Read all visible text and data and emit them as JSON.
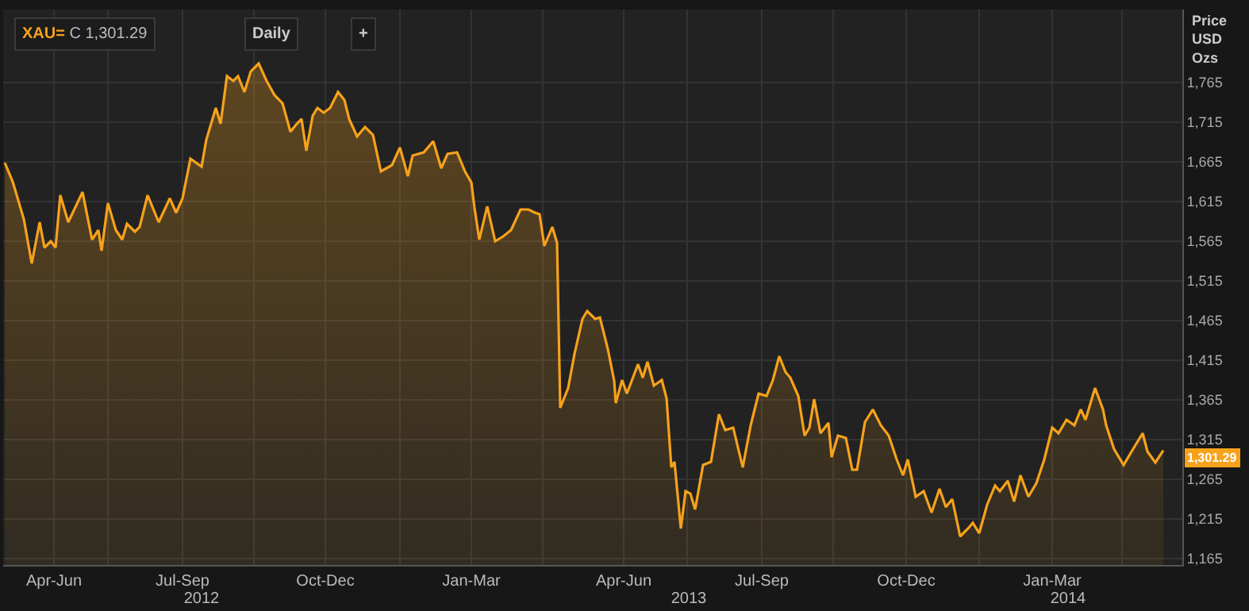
{
  "chart_data": {
    "type": "area",
    "title": "XAU=",
    "subtitle": "C 1,301.29",
    "ylabel": "Price\nUSD\nOzs",
    "x": [
      "2012-04-27",
      "2012-05-02",
      "2012-05-09",
      "2012-05-14",
      "2012-05-19",
      "2012-05-22",
      "2012-05-26",
      "2012-05-29",
      "2012-06-01",
      "2012-06-06",
      "2012-06-15",
      "2012-06-21",
      "2012-06-25",
      "2012-06-27",
      "2012-07-01",
      "2012-07-06",
      "2012-07-10",
      "2012-07-13",
      "2012-07-18",
      "2012-07-21",
      "2012-07-26",
      "2012-08-02",
      "2012-08-09",
      "2012-08-13",
      "2012-08-17",
      "2012-08-22",
      "2012-08-29",
      "2012-09-01",
      "2012-09-07",
      "2012-09-10",
      "2012-09-14",
      "2012-09-18",
      "2012-09-21",
      "2012-09-25",
      "2012-09-29",
      "2012-10-04",
      "2012-10-09",
      "2012-10-14",
      "2012-10-19",
      "2012-10-24",
      "2012-10-28",
      "2012-10-31",
      "2012-11-03",
      "2012-11-07",
      "2012-11-10",
      "2012-11-14",
      "2012-11-18",
      "2012-11-23",
      "2012-11-27",
      "2012-11-30",
      "2012-12-05",
      "2012-12-10",
      "2012-12-15",
      "2012-12-20",
      "2012-12-27",
      "2013-01-01",
      "2013-01-06",
      "2013-01-09",
      "2013-01-16",
      "2013-01-22",
      "2013-01-27",
      "2013-01-31",
      "2013-02-06",
      "2013-02-11",
      "2013-02-15",
      "2013-02-17",
      "2013-02-20",
      "2013-02-25",
      "2013-03-02",
      "2013-03-07",
      "2013-03-12",
      "2013-03-18",
      "2013-03-23",
      "2013-03-27",
      "2013-03-30",
      "2013-04-02",
      "2013-04-07",
      "2013-04-10",
      "2013-04-12",
      "2013-04-17",
      "2013-04-21",
      "2013-04-26",
      "2013-04-29",
      "2013-05-04",
      "2013-05-07",
      "2013-05-12",
      "2013-05-16",
      "2013-05-17",
      "2013-05-21",
      "2013-05-24",
      "2013-05-31",
      "2013-06-03",
      "2013-06-06",
      "2013-06-10",
      "2013-06-15",
      "2013-06-18",
      "2013-06-21",
      "2013-06-23",
      "2013-06-27",
      "2013-06-30",
      "2013-07-03",
      "2013-07-06",
      "2013-07-11",
      "2013-07-16",
      "2013-07-21",
      "2013-07-25",
      "2013-07-30",
      "2013-08-05",
      "2013-08-10",
      "2013-08-15",
      "2013-08-20",
      "2013-08-24",
      "2013-08-28",
      "2013-09-01",
      "2013-09-04",
      "2013-09-09",
      "2013-09-13",
      "2013-09-16",
      "2013-09-19",
      "2013-09-23",
      "2013-09-28",
      "2013-09-30",
      "2013-10-04",
      "2013-10-09",
      "2013-10-13",
      "2013-10-16",
      "2013-10-21",
      "2013-10-26",
      "2013-10-31",
      "2013-11-05",
      "2013-11-10",
      "2013-11-14",
      "2013-11-17",
      "2013-11-22",
      "2013-11-27",
      "2013-12-02",
      "2013-12-07",
      "2013-12-11",
      "2013-12-15",
      "2013-12-20",
      "2013-12-25",
      "2013-12-28",
      "2014-01-01",
      "2014-01-06",
      "2014-01-11",
      "2014-01-14",
      "2014-01-19",
      "2014-01-23",
      "2014-01-27",
      "2014-02-01",
      "2014-02-06",
      "2014-02-11",
      "2014-02-16",
      "2014-02-20",
      "2014-02-25",
      "2014-03-02",
      "2014-03-06",
      "2014-03-09",
      "2014-03-15",
      "2014-03-20",
      "2014-03-22",
      "2014-03-27",
      "2014-04-02",
      "2014-04-07",
      "2014-04-14",
      "2014-04-17",
      "2014-04-22",
      "2014-04-27"
    ],
    "series": [
      {
        "color": "#f7a21b",
        "values": [
          1664,
          1640,
          1593,
          1537,
          1589,
          1557,
          1565,
          1557,
          1623,
          1589,
          1627,
          1567,
          1579,
          1553,
          1613,
          1579,
          1567,
          1587,
          1577,
          1583,
          1623,
          1589,
          1619,
          1601,
          1619,
          1669,
          1659,
          1693,
          1733,
          1713,
          1773,
          1767,
          1773,
          1753,
          1779,
          1789,
          1767,
          1749,
          1739,
          1703,
          1713,
          1719,
          1679,
          1723,
          1733,
          1727,
          1733,
          1753,
          1743,
          1719,
          1697,
          1709,
          1699,
          1653,
          1661,
          1683,
          1647,
          1673,
          1677,
          1691,
          1657,
          1675,
          1677,
          1653,
          1639,
          1607,
          1567,
          1609,
          1565,
          1571,
          1579,
          1605,
          1605,
          1601,
          1599,
          1559,
          1583,
          1563,
          1355,
          1380,
          1423,
          1467,
          1477,
          1467,
          1469,
          1429,
          1389,
          1361,
          1390,
          1373,
          1410,
          1393,
          1413,
          1383,
          1390,
          1367,
          1280,
          1287,
          1203,
          1250,
          1247,
          1227,
          1283,
          1287,
          1347,
          1327,
          1330,
          1280,
          1333,
          1373,
          1370,
          1390,
          1420,
          1400,
          1393,
          1370,
          1320,
          1330,
          1366,
          1323,
          1336,
          1293,
          1320,
          1317,
          1277,
          1277,
          1337,
          1353,
          1333,
          1320,
          1290,
          1270,
          1290,
          1243,
          1250,
          1223,
          1253,
          1230,
          1240,
          1193,
          1203,
          1210,
          1197,
          1233,
          1257,
          1250,
          1263,
          1237,
          1270,
          1243,
          1260,
          1290,
          1330,
          1323,
          1340,
          1333,
          1353,
          1340,
          1380,
          1353,
          1333,
          1303,
          1283,
          1300,
          1323,
          1300,
          1286,
          1301.29
        ]
      }
    ],
    "xlim": [
      "2012-04-26",
      "2014-05-09"
    ],
    "xticks": [
      {
        "value": "2012-05-28",
        "label": "Apr-Jun"
      },
      {
        "value": "2012-07-01",
        "label": null
      },
      {
        "value": "2012-08-17",
        "label": "Jul-Sep"
      },
      {
        "value": "2012-10-01",
        "label": null
      },
      {
        "value": "2012-11-15",
        "label": "Oct-Dec"
      },
      {
        "value": "2013-01-01",
        "label": null
      },
      {
        "value": "2013-02-15",
        "label": "Jan-Mar"
      },
      {
        "value": "2013-04-01",
        "label": null
      },
      {
        "value": "2013-05-22",
        "label": "Apr-Jun"
      },
      {
        "value": "2013-07-01",
        "label": null
      },
      {
        "value": "2013-08-17",
        "label": "Jul-Sep"
      },
      {
        "value": "2013-10-01",
        "label": null
      },
      {
        "value": "2013-11-16",
        "label": "Oct-Dec"
      },
      {
        "value": "2014-01-01",
        "label": null
      },
      {
        "value": "2014-02-16",
        "label": "Jan-Mar"
      },
      {
        "value": "2014-04-01",
        "label": null
      }
    ],
    "x2lim": [
      "2012-04-26",
      "2014-05-09"
    ],
    "x2ticks": [
      {
        "value": "2012-08-29",
        "label": "2012"
      },
      {
        "value": "2013-07-02",
        "label": "2013"
      },
      {
        "value": "2014-02-26",
        "label": "2014"
      }
    ],
    "ylim": [
      1157,
      1857
    ],
    "yticks": [
      {
        "value": 1165,
        "label": "1,165"
      },
      {
        "value": 1215,
        "label": "1,215"
      },
      {
        "value": 1265,
        "label": "1,265"
      },
      {
        "value": 1315,
        "label": "1,315"
      },
      {
        "value": 1365,
        "label": "1,365"
      },
      {
        "value": 1415,
        "label": "1,415"
      },
      {
        "value": 1465,
        "label": "1,465"
      },
      {
        "value": 1515,
        "label": "1,515"
      },
      {
        "value": 1565,
        "label": "1,565"
      },
      {
        "value": 1615,
        "label": "1,615"
      },
      {
        "value": 1665,
        "label": "1,665"
      },
      {
        "value": 1715,
        "label": "1,715"
      },
      {
        "value": 1765,
        "label": "1,765"
      }
    ],
    "annotations": [
      "Daily",
      "+",
      {
        "text": "1,301.29",
        "x": "2014-04-27",
        "y": 1301.29
      }
    ],
    "grid": true,
    "marker": "none",
    "line_style": "solid"
  }
}
